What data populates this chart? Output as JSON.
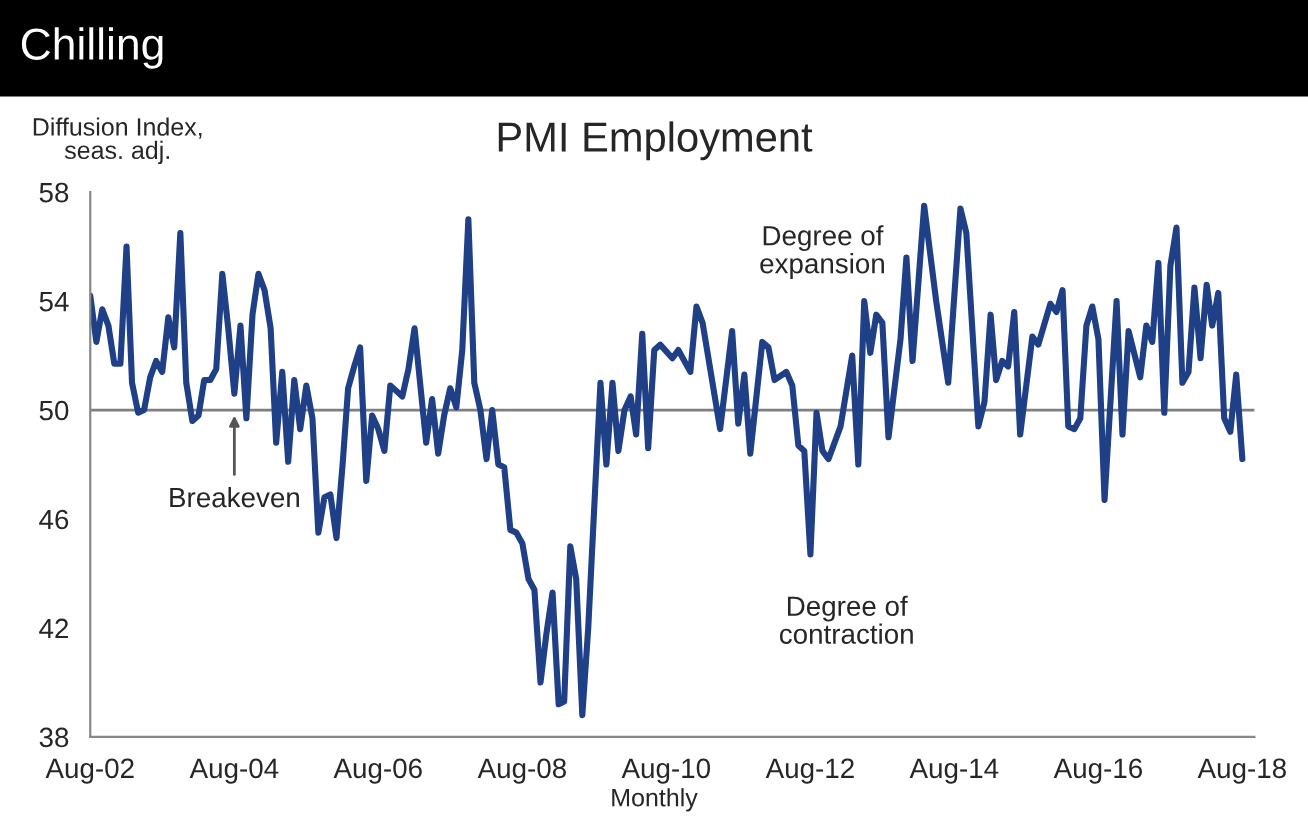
{
  "chart_data": {
    "type": "line",
    "title": "Chilling",
    "subtitle": "PMI Employment",
    "ylabel": "Diffusion Index,\nseas. adj.",
    "xlabel": "Monthly",
    "x": [
      "2002-08",
      "2002-09",
      "2002-10",
      "2002-11",
      "2002-12",
      "2003-01",
      "2003-02",
      "2003-03",
      "2003-04",
      "2003-05",
      "2003-06",
      "2003-07",
      "2003-08",
      "2003-09",
      "2003-10",
      "2003-11",
      "2003-12",
      "2004-01",
      "2004-02",
      "2004-03",
      "2004-04",
      "2004-05",
      "2004-06",
      "2004-07",
      "2004-08",
      "2004-09",
      "2004-10",
      "2004-11",
      "2004-12",
      "2005-01",
      "2005-02",
      "2005-03",
      "2005-04",
      "2005-05",
      "2005-06",
      "2005-07",
      "2005-08",
      "2005-09",
      "2005-10",
      "2005-11",
      "2005-12",
      "2006-01",
      "2006-02",
      "2006-03",
      "2006-04",
      "2006-05",
      "2006-06",
      "2006-07",
      "2006-08",
      "2006-09",
      "2006-10",
      "2006-11",
      "2006-12",
      "2007-01",
      "2007-02",
      "2007-03",
      "2007-04",
      "2007-05",
      "2007-06",
      "2007-07",
      "2007-08",
      "2007-09",
      "2007-10",
      "2007-11",
      "2007-12",
      "2008-01",
      "2008-02",
      "2008-03",
      "2008-04",
      "2008-05",
      "2008-06",
      "2008-07",
      "2008-08",
      "2008-09",
      "2008-10",
      "2008-11",
      "2008-12",
      "2009-01",
      "2009-02",
      "2009-03",
      "2009-04",
      "2009-05",
      "2009-06",
      "2009-07",
      "2009-08",
      "2009-09",
      "2009-10",
      "2009-11",
      "2009-12",
      "2010-01",
      "2010-02",
      "2010-03",
      "2010-04",
      "2010-05",
      "2010-06",
      "2010-07",
      "2010-09",
      "2010-10",
      "2010-12",
      "2011-01",
      "2011-02",
      "2011-05",
      "2011-07",
      "2011-08",
      "2011-09",
      "2011-10",
      "2011-12",
      "2012-01",
      "2012-02",
      "2012-04",
      "2012-05",
      "2012-06",
      "2012-07",
      "2012-08",
      "2012-09",
      "2012-10",
      "2012-11",
      "2013-01",
      "2013-03",
      "2013-04",
      "2013-05",
      "2013-06",
      "2013-07",
      "2013-08",
      "2013-09",
      "2013-11",
      "2013-12",
      "2014-01",
      "2014-03",
      "2014-05",
      "2014-07",
      "2014-09",
      "2014-10",
      "2014-12",
      "2015-01",
      "2015-02",
      "2015-03",
      "2015-04",
      "2015-05",
      "2015-06",
      "2015-07",
      "2015-09",
      "2015-10",
      "2015-12",
      "2016-01",
      "2016-02",
      "2016-03",
      "2016-04",
      "2016-05",
      "2016-06",
      "2016-07",
      "2016-08",
      "2016-09",
      "2016-11",
      "2016-12",
      "2017-01",
      "2017-03",
      "2017-04",
      "2017-05",
      "2017-06",
      "2017-07",
      "2017-08",
      "2017-09",
      "2017-10",
      "2017-11",
      "2017-12",
      "2018-01",
      "2018-02",
      "2018-03",
      "2018-04",
      "2018-05",
      "2018-06",
      "2018-07",
      "2018-08"
    ],
    "series": [
      {
        "color": "#1f3f86",
        "values": [
          54.2,
          52.5,
          53.7,
          53.1,
          51.7,
          51.7,
          56.0,
          51.0,
          49.9,
          50.0,
          51.2,
          51.8,
          51.4,
          53.4,
          52.3,
          56.5,
          51.0,
          49.6,
          49.8,
          51.1,
          51.1,
          51.5,
          55.0,
          53.0,
          50.6,
          53.1,
          49.7,
          53.5,
          55.0,
          54.4,
          53.0,
          48.8,
          51.4,
          48.1,
          51.1,
          49.3,
          50.9,
          49.7,
          45.5,
          46.8,
          46.9,
          45.3,
          48.0,
          50.8,
          51.6,
          52.3,
          47.4,
          49.8,
          49.3,
          48.5,
          50.9,
          50.7,
          50.5,
          51.5,
          53.0,
          51.0,
          48.8,
          50.4,
          48.4,
          49.8,
          50.8,
          50.1,
          52.2,
          57.0,
          51.0,
          50.0,
          48.2,
          50.0,
          48.0,
          47.9,
          45.6,
          45.5,
          45.1,
          43.8,
          43.4,
          40.0,
          41.8,
          43.3,
          39.2,
          39.3,
          45.0,
          43.8,
          38.8,
          42.0,
          46.5,
          51.0,
          48.0,
          51.0,
          48.5,
          50.0,
          50.5,
          49.1,
          52.8,
          48.6,
          52.2,
          52.4,
          51.9,
          52.2,
          51.4,
          53.8,
          53.2,
          49.3,
          52.9,
          49.5,
          51.3,
          48.4,
          52.5,
          52.3,
          51.1,
          51.4,
          50.9,
          48.7,
          48.5,
          44.7,
          49.9,
          48.5,
          48.2,
          49.4,
          52.0,
          48.0,
          54.0,
          52.1,
          53.5,
          53.2,
          49.0,
          52.6,
          55.6,
          51.8,
          57.5,
          54.0,
          51.0,
          57.4,
          56.5,
          49.4,
          50.3,
          53.5,
          51.1,
          51.8,
          51.6,
          53.6,
          49.1,
          52.7,
          52.4,
          53.9,
          53.6,
          54.4,
          49.4,
          49.3,
          49.7,
          53.1,
          53.8,
          52.6,
          46.7,
          54.0,
          49.1,
          52.9,
          51.2,
          53.1,
          52.5,
          55.4,
          49.9,
          55.3,
          56.7,
          51.0,
          51.4,
          54.5,
          51.9,
          54.6,
          53.1,
          54.3,
          49.7,
          49.2,
          51.3,
          48.2
        ]
      }
    ],
    "xlim": [
      "2002-08",
      "2018-10"
    ],
    "xticks": [
      {
        "value": "2002-08",
        "label": "Aug-02"
      },
      {
        "value": "2004-08",
        "label": "Aug-04"
      },
      {
        "value": "2006-08",
        "label": "Aug-06"
      },
      {
        "value": "2008-08",
        "label": "Aug-08"
      },
      {
        "value": "2010-08",
        "label": "Aug-10"
      },
      {
        "value": "2012-08",
        "label": "Aug-12"
      },
      {
        "value": "2014-08",
        "label": "Aug-14"
      },
      {
        "value": "2016-08",
        "label": "Aug-16"
      },
      {
        "value": "2018-08",
        "label": "Aug-18"
      }
    ],
    "ylim": [
      38,
      58
    ],
    "yticks": [
      38,
      42,
      46,
      50,
      54,
      58
    ],
    "ref_lines": [
      {
        "axis": "y",
        "value": 50,
        "color": "#7f7f7f"
      }
    ],
    "annotations": [
      {
        "text": "Breakeven",
        "x": "2004-08",
        "y": 50
      },
      "Degree of\nexpansion",
      "Degree of\ncontraction"
    ],
    "grid": false,
    "legend": false,
    "marker": "none",
    "line_style": "solid"
  }
}
